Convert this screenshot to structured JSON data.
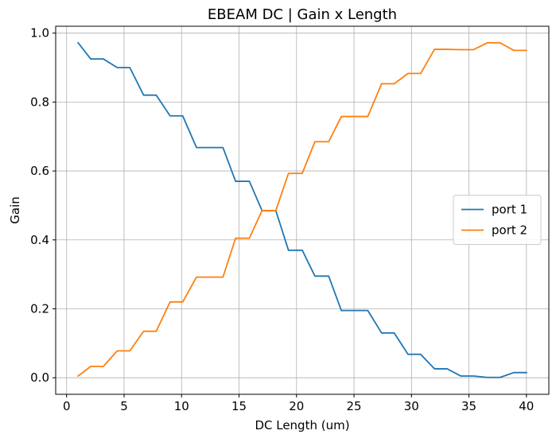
{
  "chart_data": {
    "type": "line",
    "title": "EBEAM DC | Gain x Length",
    "xlabel": "DC Length (um)",
    "ylabel": "Gain",
    "xlim": [
      -0.95,
      41.95
    ],
    "ylim": [
      -0.048,
      1.02
    ],
    "x_ticks": [
      0,
      5,
      10,
      15,
      20,
      25,
      30,
      35,
      40
    ],
    "x_tick_labels": [
      "0",
      "5",
      "10",
      "15",
      "20",
      "25",
      "30",
      "35",
      "40"
    ],
    "y_ticks": [
      0.0,
      0.2,
      0.4,
      0.6,
      0.8,
      1.0
    ],
    "y_tick_labels": [
      "0.0",
      "0.2",
      "0.4",
      "0.6",
      "0.8",
      "1.0"
    ],
    "grid": true,
    "legend_position": "center-right",
    "x": [
      1.0,
      2.1,
      3.2,
      4.4,
      5.5,
      6.7,
      7.8,
      9.0,
      10.1,
      11.3,
      12.4,
      13.6,
      14.7,
      15.9,
      17.0,
      18.2,
      19.3,
      20.5,
      21.6,
      22.8,
      23.9,
      25.1,
      26.2,
      27.4,
      28.5,
      29.7,
      30.8,
      32.0,
      33.1,
      34.3,
      35.4,
      36.6,
      37.7,
      38.9,
      40.0
    ],
    "series": [
      {
        "name": "port 1",
        "color": "#1f77b4",
        "values": [
          0.972,
          0.925,
          0.925,
          0.9,
          0.9,
          0.82,
          0.82,
          0.76,
          0.76,
          0.668,
          0.668,
          0.668,
          0.57,
          0.57,
          0.485,
          0.485,
          0.37,
          0.37,
          0.295,
          0.295,
          0.195,
          0.195,
          0.195,
          0.13,
          0.13,
          0.068,
          0.068,
          0.026,
          0.026,
          0.005,
          0.005,
          0.001,
          0.001,
          0.015,
          0.015
        ]
      },
      {
        "name": "port 2",
        "color": "#ff7f0e",
        "values": [
          0.005,
          0.033,
          0.033,
          0.078,
          0.078,
          0.135,
          0.135,
          0.22,
          0.22,
          0.292,
          0.292,
          0.292,
          0.405,
          0.405,
          0.485,
          0.485,
          0.593,
          0.593,
          0.685,
          0.685,
          0.758,
          0.758,
          0.758,
          0.853,
          0.853,
          0.883,
          0.883,
          0.953,
          0.953,
          0.952,
          0.952,
          0.972,
          0.972,
          0.95,
          0.95
        ]
      }
    ]
  }
}
